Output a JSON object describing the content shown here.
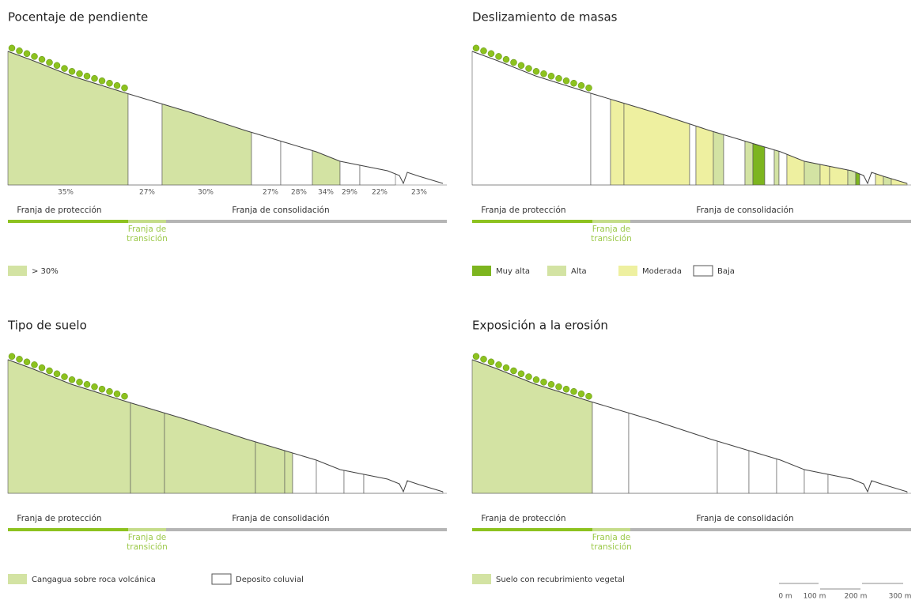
{
  "panels": [
    {
      "title": "Pocentaje de pendiente",
      "slope_labels": [
        "35%",
        "27%",
        "30%",
        "27%",
        "28%",
        "34%",
        "29%",
        "22%",
        "23%"
      ],
      "protection": "Franja de protección",
      "transition": [
        "Franja de",
        "transición"
      ],
      "consolidation": "Franja de consolidación",
      "legend": [
        {
          "label": "> 30%",
          "color": "#d3e3a3"
        }
      ]
    },
    {
      "title": "Deslizamiento de masas",
      "protection": "Franja de protección",
      "transition": [
        "Franja de",
        "transición"
      ],
      "consolidation": "Franja de consolidación",
      "legend": [
        {
          "label": "Muy alta",
          "color": "#7db51f"
        },
        {
          "label": "Alta",
          "color": "#d3e3a3"
        },
        {
          "label": "Moderada",
          "color": "#eef0a0"
        },
        {
          "label": "Baja",
          "color": "#ffffff"
        }
      ]
    },
    {
      "title": "Tipo de suelo",
      "protection": "Franja de protección",
      "transition": [
        "Franja de",
        "transición"
      ],
      "consolidation": "Franja de consolidación",
      "legend": [
        {
          "label": "Cangagua sobre roca volcánica",
          "color": "#d3e3a3"
        },
        {
          "label": "Deposito coluvial",
          "color": "#ffffff"
        }
      ]
    },
    {
      "title": "Exposición a la erosión",
      "protection": "Franja de protección",
      "transition": [
        "Franja de",
        "transición"
      ],
      "consolidation": "Franja de consolidación",
      "legend": [
        {
          "label": "Suelo con recubrimiento vegetal",
          "color": "#d3e3a3"
        }
      ]
    }
  ],
  "scale": [
    "0 m",
    "100 m",
    "200 m",
    "300 m"
  ]
}
